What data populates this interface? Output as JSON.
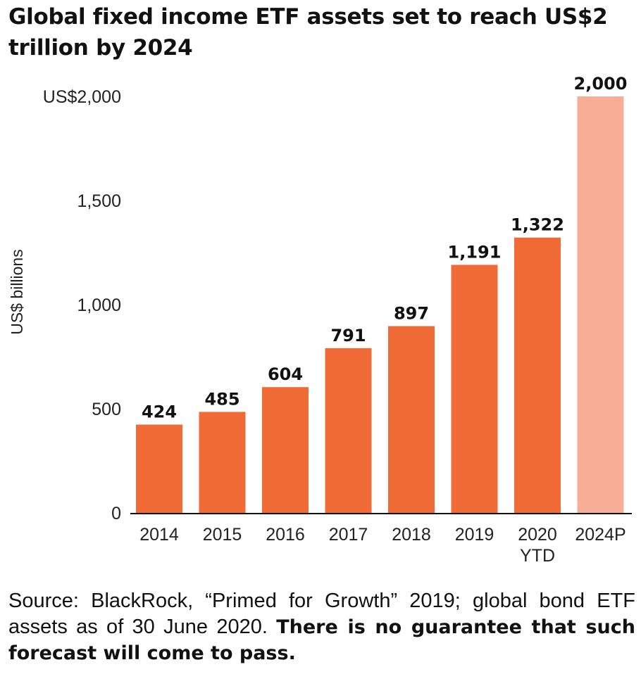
{
  "title": "Global fixed income ETF assets set to reach US$2 trillion by 2024",
  "chart_data": {
    "type": "bar",
    "title": "Global fixed income ETF assets set to reach US$2 trillion by 2024",
    "ylabel": "US$ billions",
    "xlabel": "",
    "ylim": [
      0,
      2000
    ],
    "yticks": [
      0,
      500,
      1000,
      1500,
      2000
    ],
    "ytick_labels": [
      "0",
      "500",
      "1,000",
      "1,500",
      "US$2,000"
    ],
    "categories": [
      "2014",
      "2015",
      "2016",
      "2017",
      "2018",
      "2019",
      "2020 YTD",
      "2024P"
    ],
    "category_lines": [
      [
        "2014"
      ],
      [
        "2015"
      ],
      [
        "2016"
      ],
      [
        "2017"
      ],
      [
        "2018"
      ],
      [
        "2019"
      ],
      [
        "2020",
        "YTD"
      ],
      [
        "2024P"
      ]
    ],
    "values": [
      424,
      485,
      604,
      791,
      897,
      1191,
      1322,
      2000
    ],
    "value_labels": [
      "424",
      "485",
      "604",
      "791",
      "897",
      "1,191",
      "1,322",
      "2,000"
    ],
    "projected": [
      false,
      false,
      false,
      false,
      false,
      false,
      false,
      true
    ],
    "colors": {
      "actual": "#f06b35",
      "projected": "#f7ad96",
      "axis": "#111111"
    }
  },
  "source": {
    "text": "Source: BlackRock, “Primed for Growth” 2019; global bond ETF assets as of 30 June 2020.",
    "disclaimer": "There is no guarantee that such forecast will come to pass."
  }
}
